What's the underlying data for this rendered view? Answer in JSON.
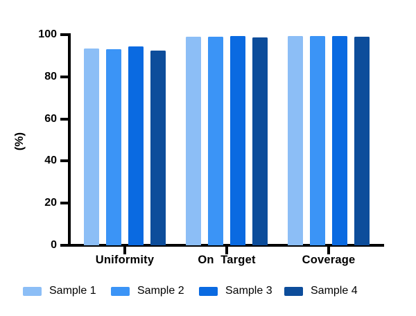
{
  "chart_data": {
    "type": "bar",
    "title": "",
    "ylabel": "(%)",
    "xlabel": "",
    "ylim": [
      0,
      100
    ],
    "yticks": [
      0,
      20,
      40,
      60,
      80,
      100
    ],
    "grid": false,
    "legend_position": "bottom",
    "categories": [
      "Uniformity",
      "On  Target",
      "Coverage"
    ],
    "series": [
      {
        "name": "Sample 1",
        "color": "#8CBEF6",
        "values": [
          93.5,
          99.0,
          99.2
        ]
      },
      {
        "name": "Sample 2",
        "color": "#3B94F6",
        "values": [
          93.0,
          99.0,
          99.5
        ]
      },
      {
        "name": "Sample 3",
        "color": "#0A6AE1",
        "values": [
          94.5,
          99.2,
          99.4
        ]
      },
      {
        "name": "Sample 4",
        "color": "#0D4D9B",
        "values": [
          92.5,
          98.8,
          99.1
        ]
      }
    ]
  },
  "layout_meta": {
    "axis_color": "#000000",
    "text_color": "#000000",
    "background": "#ffffff"
  }
}
